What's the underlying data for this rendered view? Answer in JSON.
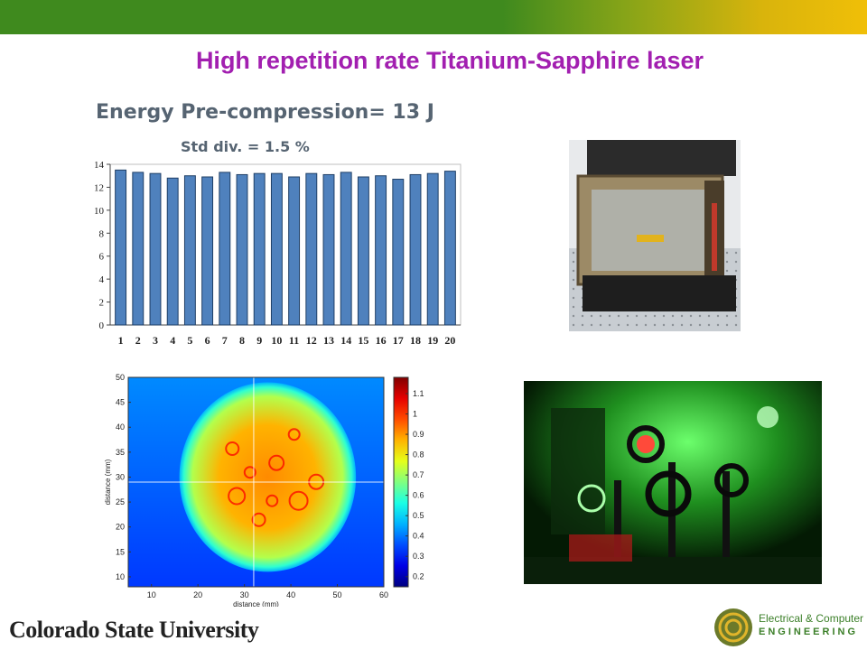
{
  "slide": {
    "title": "High repetition rate Titanium-Sapphire laser",
    "university": "Colorado State University",
    "dept_line1": "Electrical & Computer",
    "dept_line2": "ENGINEERING",
    "colors": {
      "title": "#a21fb0",
      "band_green": "#3f8a1e",
      "band_yellow": "#f0bf08",
      "bar": "#4f81bd"
    }
  },
  "chart_data": [
    {
      "type": "bar",
      "title": "Energy Pre-compression= 13 J",
      "subtitle": "Std div.  = 1.5 %",
      "categories": [
        "1",
        "2",
        "3",
        "4",
        "5",
        "6",
        "7",
        "8",
        "9",
        "10",
        "11",
        "12",
        "13",
        "14",
        "15",
        "16",
        "17",
        "18",
        "19",
        "20"
      ],
      "values": [
        13.5,
        13.3,
        13.2,
        12.8,
        13.0,
        12.9,
        13.3,
        13.1,
        13.2,
        13.2,
        12.9,
        13.2,
        13.1,
        13.3,
        12.9,
        13.0,
        12.7,
        13.1,
        13.2,
        13.4
      ],
      "ylim": [
        0,
        14
      ],
      "yticks": [
        0,
        2,
        4,
        6,
        8,
        10,
        12,
        14
      ],
      "xlabel": "",
      "ylabel": "",
      "grid": false
    },
    {
      "type": "heatmap",
      "xlabel": "distance (mm)",
      "ylabel": "distance (mm)",
      "xlim": [
        5,
        60
      ],
      "ylim": [
        8,
        50
      ],
      "xticks": [
        10,
        20,
        30,
        40,
        50,
        60
      ],
      "yticks": [
        10,
        15,
        20,
        25,
        30,
        35,
        40,
        45,
        50
      ],
      "colorbar": {
        "min": 0.15,
        "max": 1.18,
        "ticks": [
          0.2,
          0.3,
          0.4,
          0.5,
          0.6,
          0.7,
          0.8,
          0.9,
          1,
          1.1
        ],
        "colormap": "jet"
      },
      "beam_center": [
        35,
        30
      ],
      "beam_radius": [
        19,
        19
      ],
      "crosshair": [
        32,
        29
      ]
    }
  ],
  "photos": [
    {
      "name": "vacuum-chamber-photo"
    },
    {
      "name": "green-laser-optics-photo"
    }
  ]
}
